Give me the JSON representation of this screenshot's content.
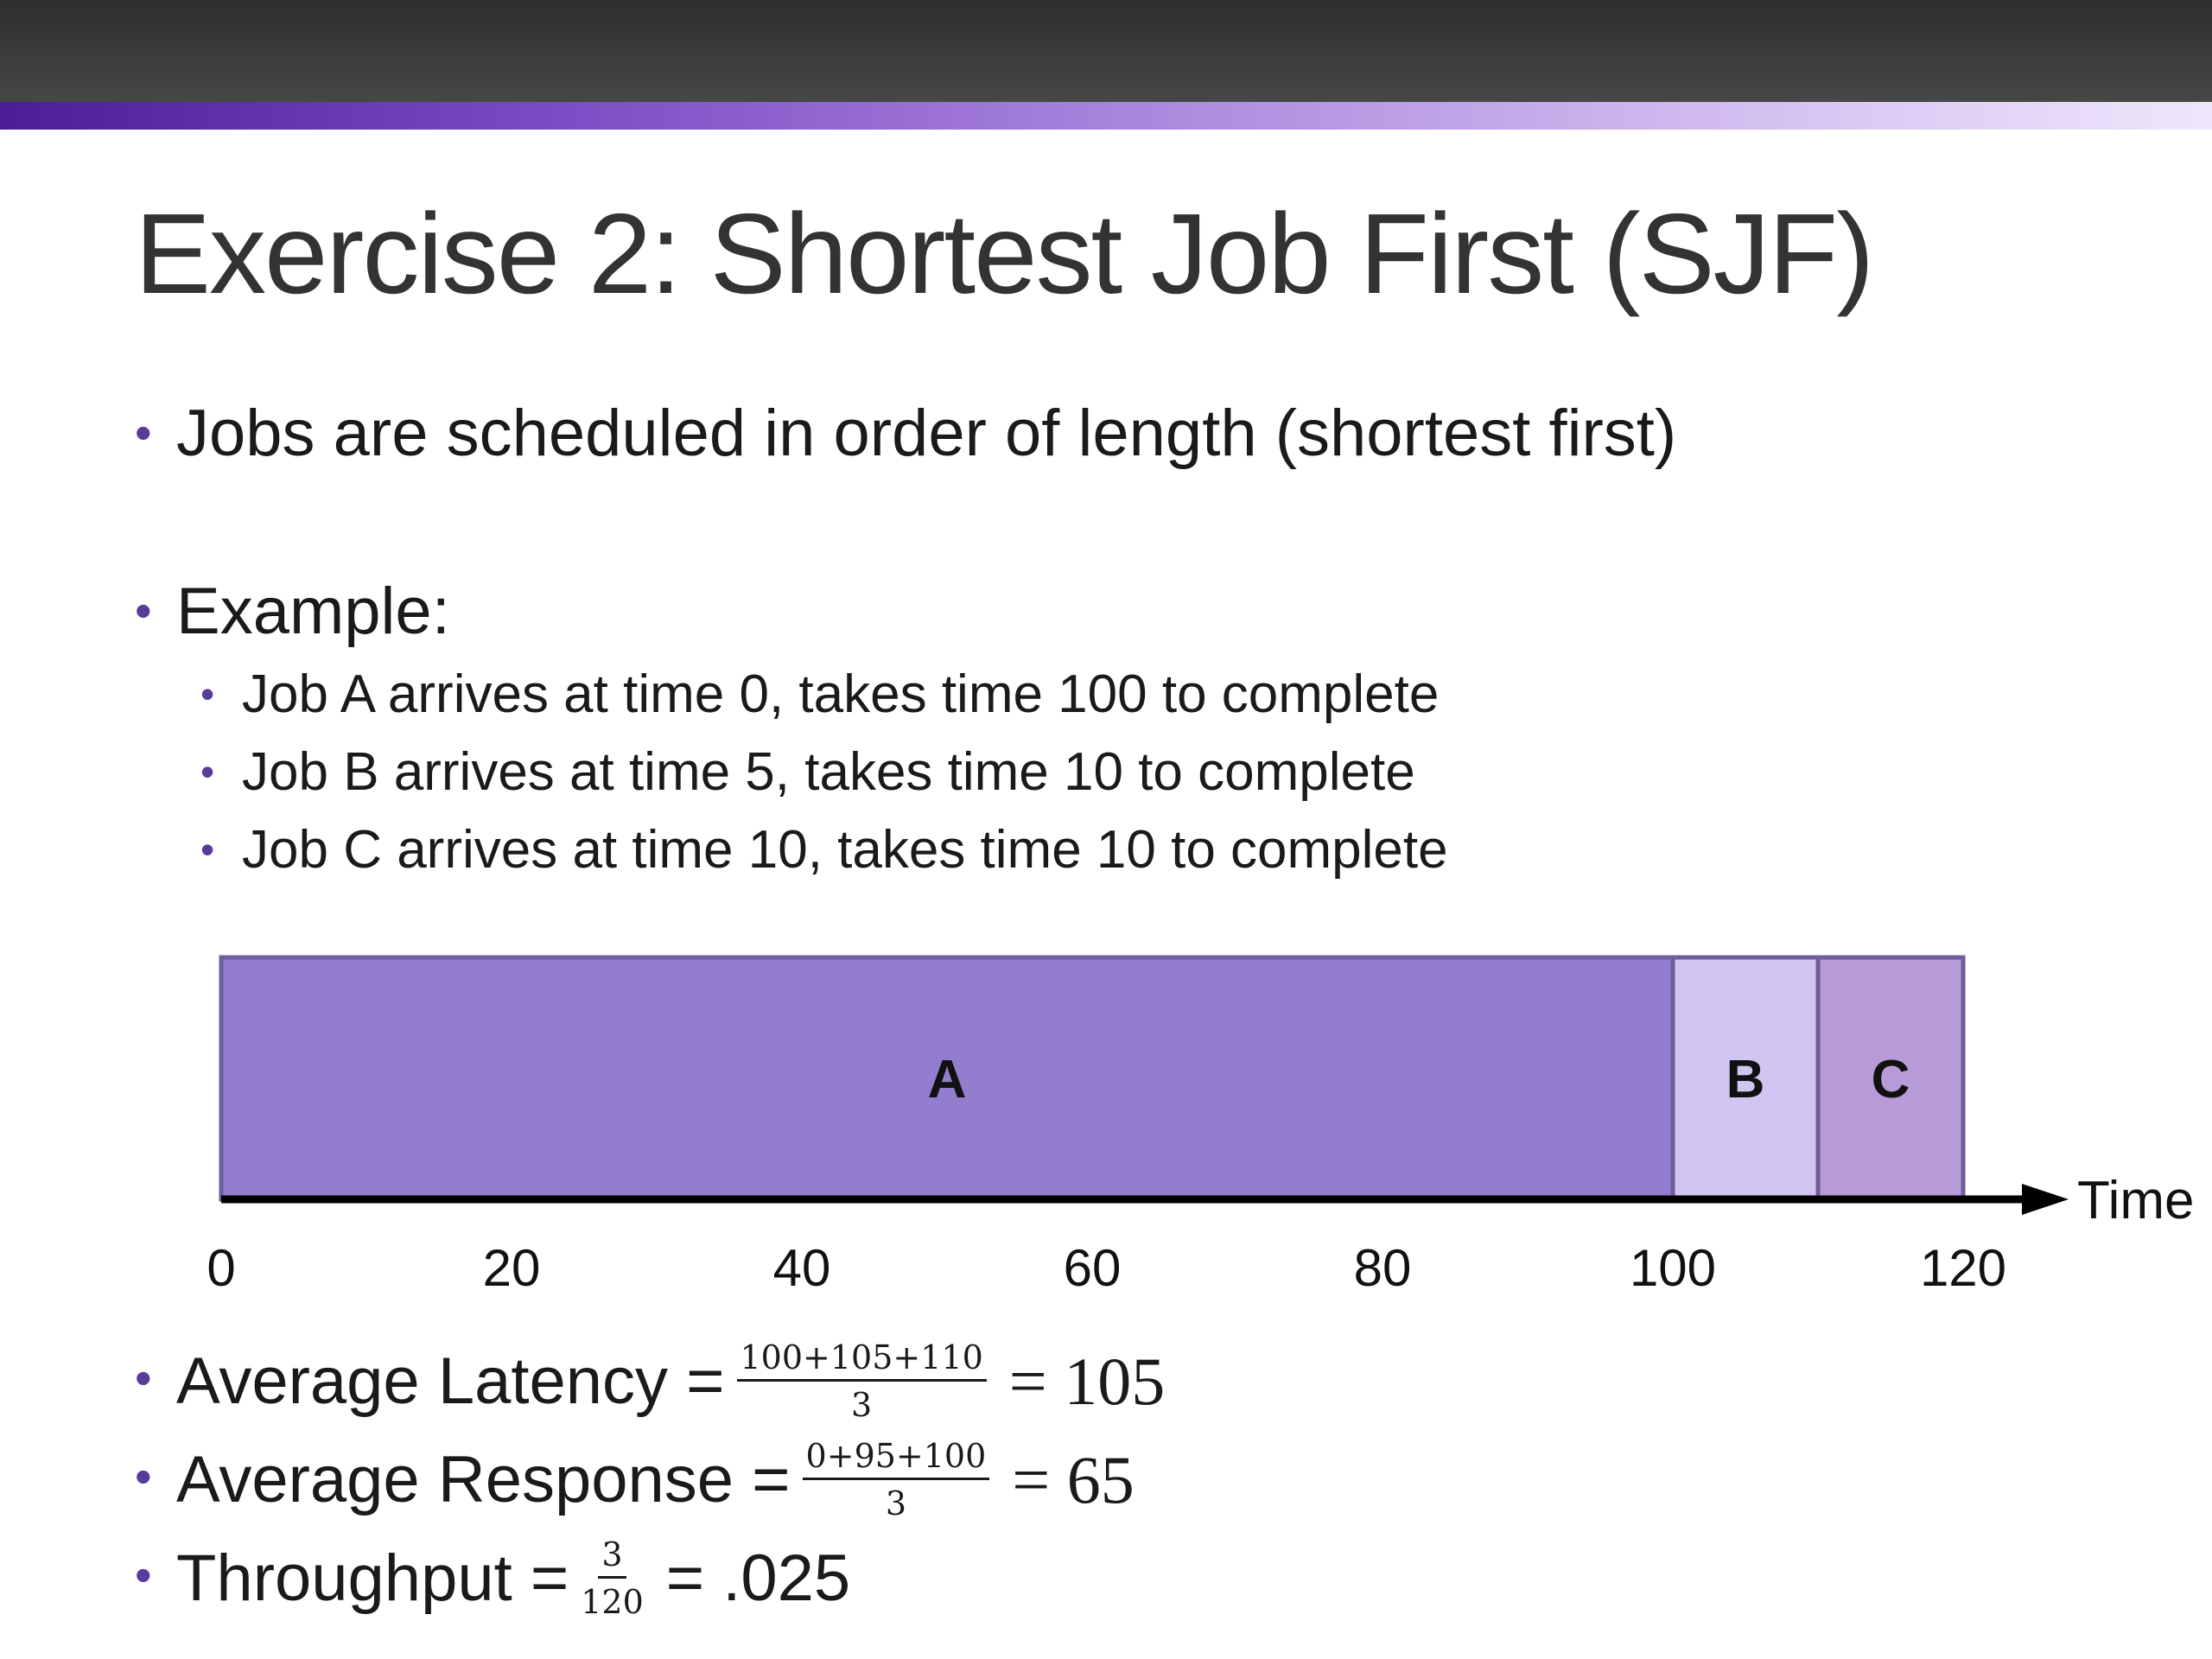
{
  "slide": {
    "title": "Exercise 2: Shortest Job First (SJF)",
    "bullets": {
      "rule": "Jobs are scheduled in order of length (shortest first)",
      "example": "Example:",
      "jobs": [
        "Job A arrives at time 0, takes time 100 to complete",
        "Job B arrives at time 5, takes time 10 to complete",
        "Job C arrives at time 10, takes time 10 to complete"
      ]
    },
    "metrics": {
      "latency": {
        "label": "Average Latency =",
        "numerator": "100+105+110",
        "denominator": "3",
        "result": "= 105"
      },
      "response": {
        "label": "Average Response =",
        "numerator": "0+95+100",
        "denominator": "3",
        "result": "= 65"
      },
      "throughput": {
        "label": "Throughput =",
        "numerator": "3",
        "denominator": "120",
        "result": "= .025"
      }
    }
  },
  "chart_data": {
    "type": "gantt",
    "xlabel": "Time",
    "xlim": [
      0,
      120
    ],
    "ticks": [
      {
        "value": 0,
        "label": "0"
      },
      {
        "value": 20,
        "label": "20"
      },
      {
        "value": 40,
        "label": "40"
      },
      {
        "value": 60,
        "label": "60"
      },
      {
        "value": 80,
        "label": "80"
      },
      {
        "value": 100,
        "label": "100"
      },
      {
        "value": 120,
        "label": "120"
      }
    ],
    "segments": [
      {
        "label": "A",
        "start": 0,
        "end": 100,
        "color": "#937dce"
      },
      {
        "label": "B",
        "start": 100,
        "end": 110,
        "color": "#d1c6f2"
      },
      {
        "label": "C",
        "start": 110,
        "end": 120,
        "color": "#b79ad8"
      }
    ],
    "colors": {
      "border": "#6e5e9c",
      "axis": "#000000"
    }
  }
}
